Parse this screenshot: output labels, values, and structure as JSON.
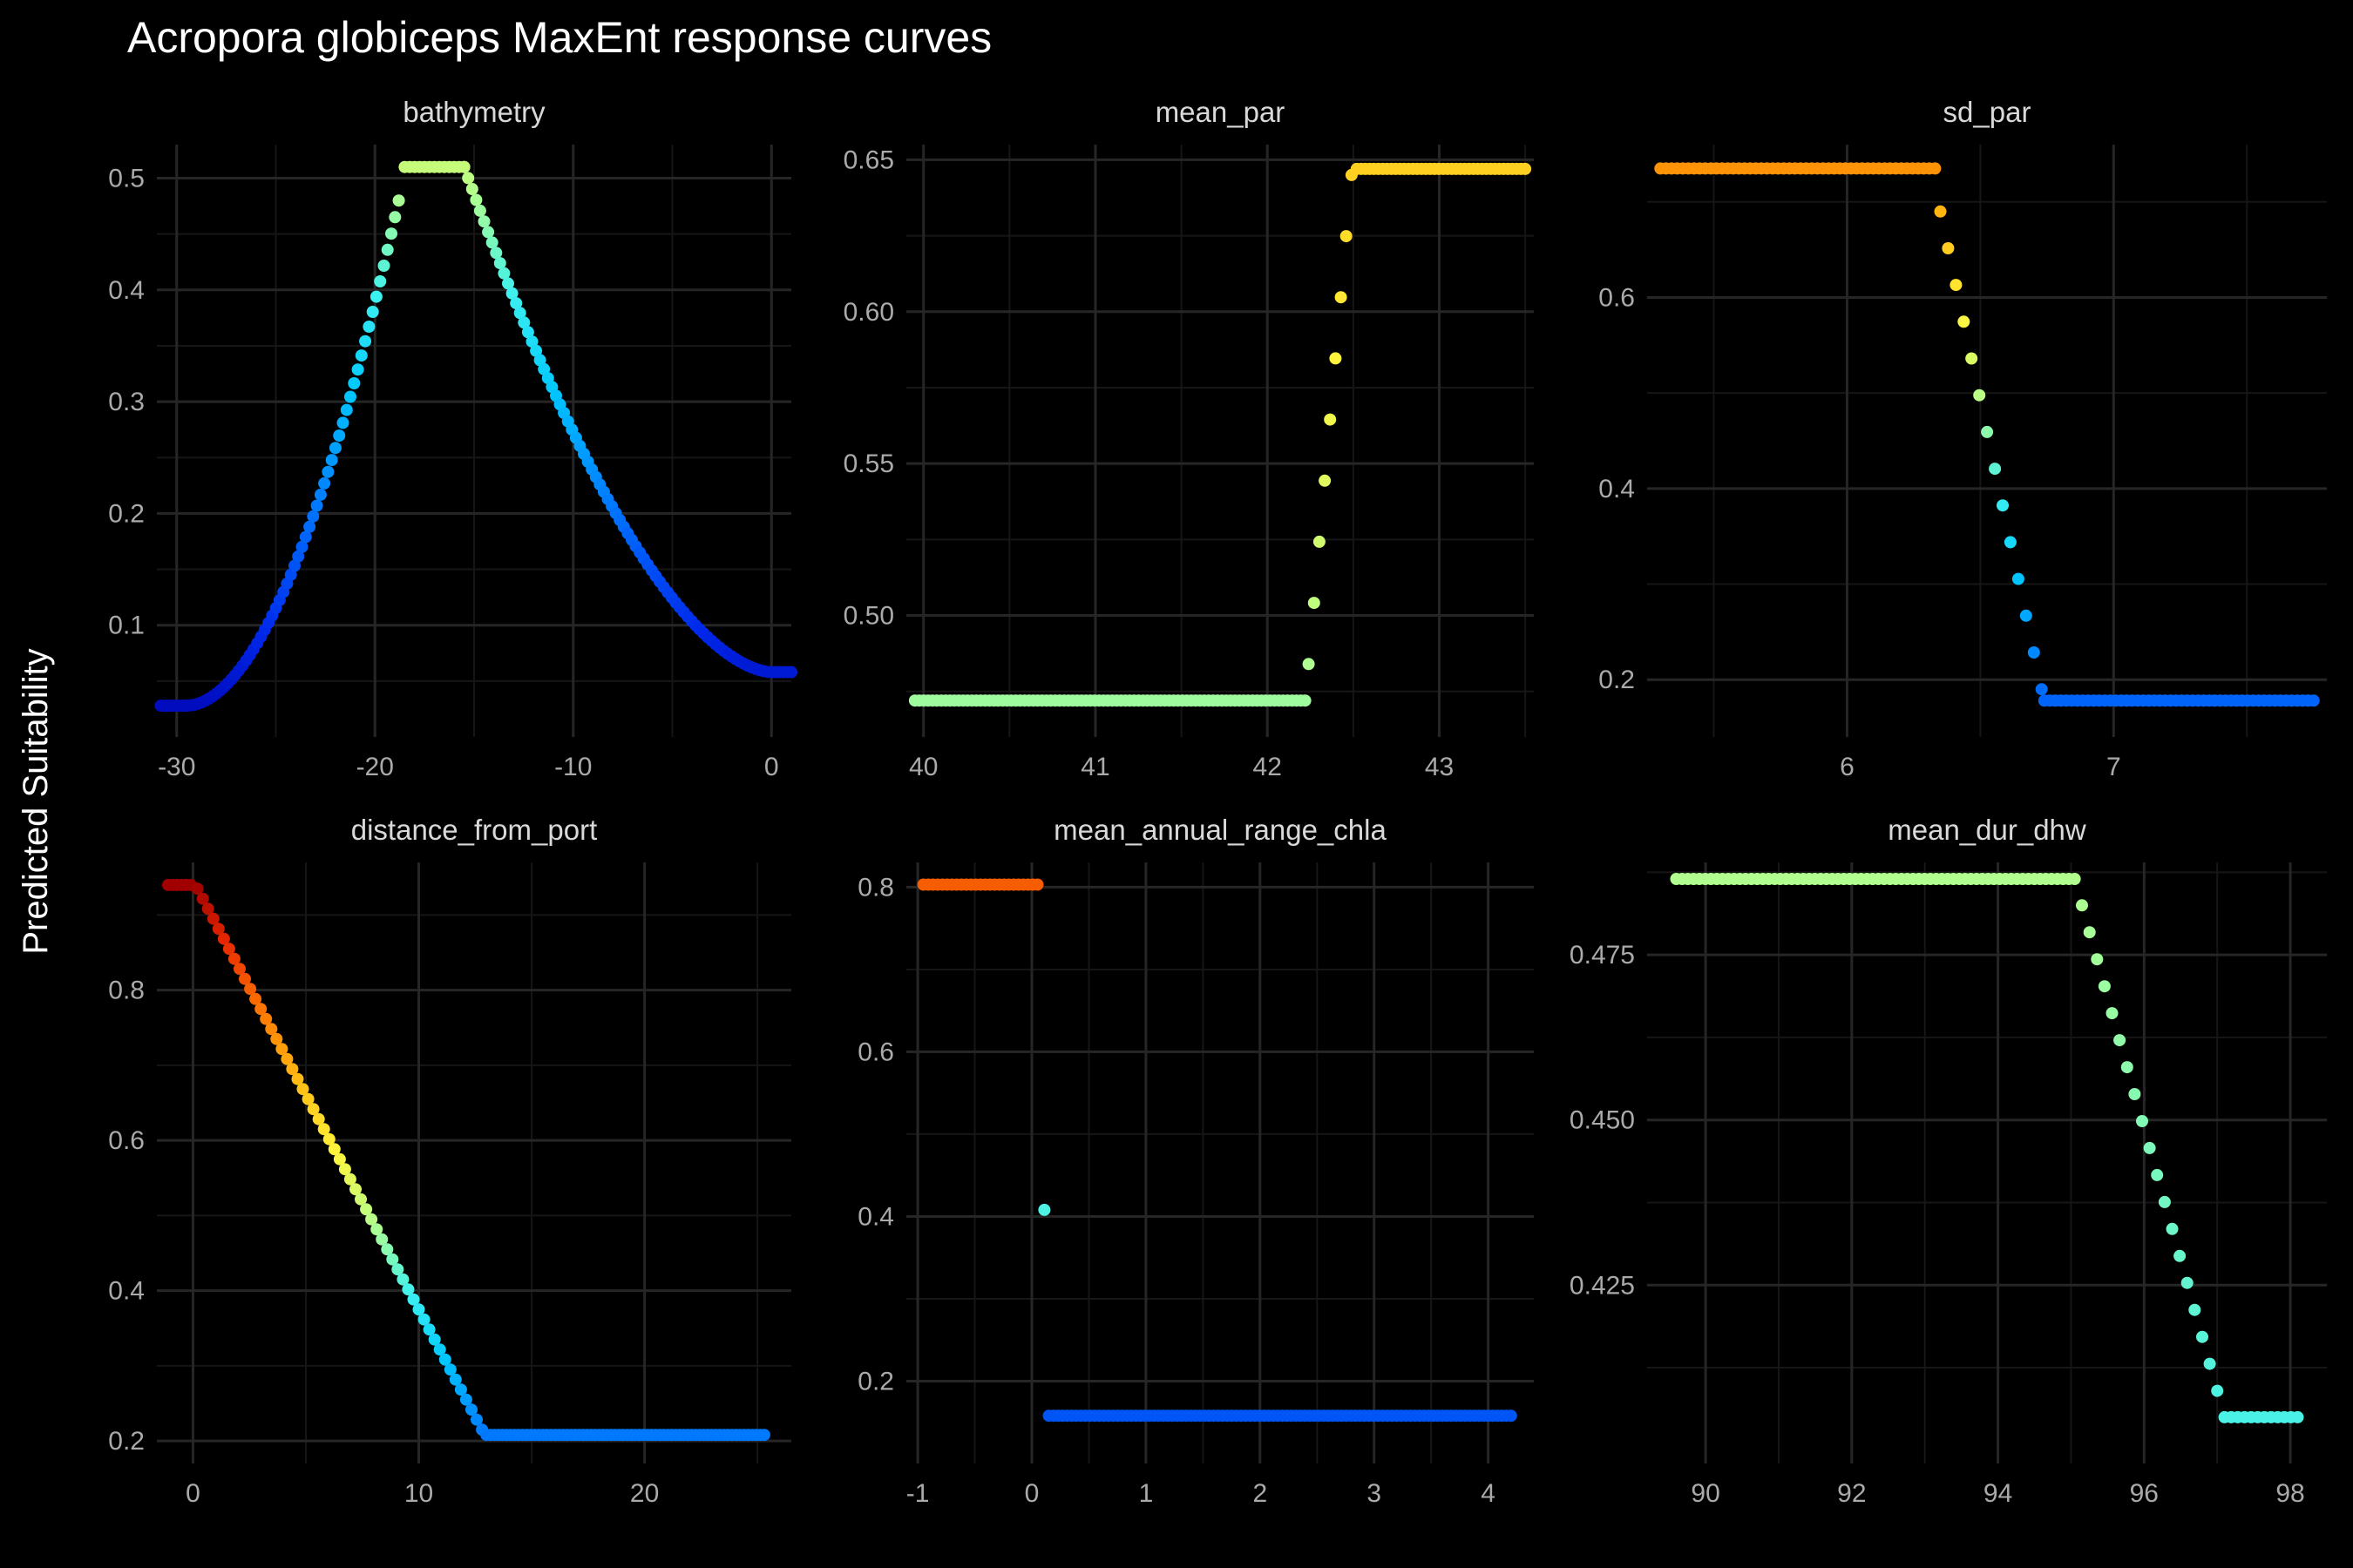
{
  "title": "Acropora globiceps MaxEnt response curves",
  "ylabel": "Predicted Suitability",
  "chart_data": [
    {
      "type": "scatter",
      "title": "bathymetry",
      "xlim": [
        -31,
        1
      ],
      "ylim": [
        0.0,
        0.53
      ],
      "xticks": [
        -30,
        -20,
        -10,
        0
      ],
      "xtick_labels": [
        "-30",
        "-20",
        "-10",
        "0"
      ],
      "yticks": [
        0.1,
        0.2,
        0.3,
        0.4,
        0.5
      ],
      "ytick_labels": [
        "0.1",
        "0.2",
        "0.3",
        "0.4",
        "0.5"
      ],
      "segments": [
        {
          "x": [
            -30.8,
            -29.5
          ],
          "y": [
            0.028,
            0.028
          ],
          "n": 12,
          "shape": "flat"
        },
        {
          "x": [
            -29.5,
            -18.8
          ],
          "y": [
            0.028,
            0.48
          ],
          "n": 58,
          "shape": "grow"
        },
        {
          "x": [
            -18.5,
            -15.5
          ],
          "y": [
            0.51,
            0.51
          ],
          "n": 13,
          "shape": "flat"
        },
        {
          "x": [
            -15.5,
            0.0
          ],
          "y": [
            0.51,
            0.058
          ],
          "n": 78,
          "shape": "decay"
        },
        {
          "x": [
            0.0,
            1.0
          ],
          "y": [
            0.058,
            0.058
          ],
          "n": 6,
          "shape": "flat"
        }
      ]
    },
    {
      "type": "scatter",
      "title": "mean_par",
      "xlim": [
        39.9,
        43.55
      ],
      "ylim": [
        0.46,
        0.655
      ],
      "xticks": [
        40,
        41,
        42,
        43
      ],
      "xtick_labels": [
        "40",
        "41",
        "42",
        "43"
      ],
      "yticks": [
        0.5,
        0.55,
        0.6,
        0.65
      ],
      "ytick_labels": [
        "0.50",
        "0.55",
        "0.60",
        "0.65"
      ],
      "segments": [
        {
          "x": [
            39.95,
            42.22
          ],
          "y": [
            0.472,
            0.472
          ],
          "n": 90,
          "shape": "flat"
        },
        {
          "x": [
            42.24,
            42.49
          ],
          "y": [
            0.484,
            0.645
          ],
          "n": 9,
          "shape": "linear"
        },
        {
          "x": [
            42.52,
            43.5
          ],
          "y": [
            0.647,
            0.647
          ],
          "n": 40,
          "shape": "flat"
        }
      ]
    },
    {
      "type": "scatter",
      "title": "sd_par",
      "xlim": [
        5.25,
        7.8
      ],
      "ylim": [
        0.14,
        0.76
      ],
      "xticks": [
        6,
        7
      ],
      "xtick_labels": [
        "6",
        "7"
      ],
      "yticks": [
        0.2,
        0.4,
        0.6
      ],
      "ytick_labels": [
        "0.2",
        "0.4",
        "0.6"
      ],
      "segments": [
        {
          "x": [
            5.3,
            6.33
          ],
          "y": [
            0.735,
            0.735
          ],
          "n": 50,
          "shape": "flat"
        },
        {
          "x": [
            6.35,
            6.73
          ],
          "y": [
            0.69,
            0.19
          ],
          "n": 14,
          "shape": "linear"
        },
        {
          "x": [
            6.74,
            7.75
          ],
          "y": [
            0.178,
            0.178
          ],
          "n": 50,
          "shape": "flat"
        }
      ]
    },
    {
      "type": "scatter",
      "title": "distance_from_port",
      "xlim": [
        -1.6,
        26.5
      ],
      "ylim": [
        0.17,
        0.97
      ],
      "xticks": [
        0,
        10,
        20
      ],
      "xtick_labels": [
        "0",
        "10",
        "20"
      ],
      "yticks": [
        0.2,
        0.4,
        0.6,
        0.8
      ],
      "ytick_labels": [
        "0.2",
        "0.4",
        "0.6",
        "0.8"
      ],
      "segments": [
        {
          "x": [
            -1.1,
            -0.1
          ],
          "y": [
            0.94,
            0.94
          ],
          "n": 6,
          "shape": "flat"
        },
        {
          "x": [
            0.2,
            12.8
          ],
          "y": [
            0.935,
            0.215
          ],
          "n": 55,
          "shape": "linear"
        },
        {
          "x": [
            13.0,
            25.3
          ],
          "y": [
            0.208,
            0.208
          ],
          "n": 70,
          "shape": "flat"
        }
      ]
    },
    {
      "type": "scatter",
      "title": "mean_annual_range_chla",
      "xlim": [
        -1.1,
        4.4
      ],
      "ylim": [
        0.1,
        0.83
      ],
      "xticks": [
        -1,
        0,
        1,
        2,
        3,
        4
      ],
      "xtick_labels": [
        "-1",
        "0",
        "1",
        "2",
        "3",
        "4"
      ],
      "yticks": [
        0.2,
        0.4,
        0.6,
        0.8
      ],
      "ytick_labels": [
        "0.2",
        "0.4",
        "0.6",
        "0.8"
      ],
      "segments": [
        {
          "x": [
            -0.95,
            0.05
          ],
          "y": [
            0.803,
            0.803
          ],
          "n": 25,
          "shape": "flat"
        },
        {
          "x": [
            0.11,
            0.11
          ],
          "y": [
            0.408,
            0.408
          ],
          "n": 1,
          "shape": "flat"
        },
        {
          "x": [
            0.15,
            4.2
          ],
          "y": [
            0.158,
            0.158
          ],
          "n": 102,
          "shape": "flat"
        }
      ]
    },
    {
      "type": "scatter",
      "title": "mean_dur_dhw",
      "xlim": [
        89.2,
        98.5
      ],
      "ylim": [
        0.398,
        0.489
      ],
      "xticks": [
        90,
        92,
        94,
        96,
        98
      ],
      "xtick_labels": [
        "90",
        "92",
        "94",
        "96",
        "98"
      ],
      "yticks": [
        0.425,
        0.45,
        0.475
      ],
      "ytick_labels": [
        "0.425",
        "0.450",
        "0.475"
      ],
      "segments": [
        {
          "x": [
            89.6,
            95.05
          ],
          "y": [
            0.4865,
            0.4865
          ],
          "n": 70,
          "shape": "flat"
        },
        {
          "x": [
            95.15,
            97.0
          ],
          "y": [
            0.4825,
            0.409
          ],
          "n": 19,
          "shape": "linear"
        },
        {
          "x": [
            97.1,
            98.1
          ],
          "y": [
            0.405,
            0.405
          ],
          "n": 12,
          "shape": "flat"
        }
      ]
    }
  ]
}
